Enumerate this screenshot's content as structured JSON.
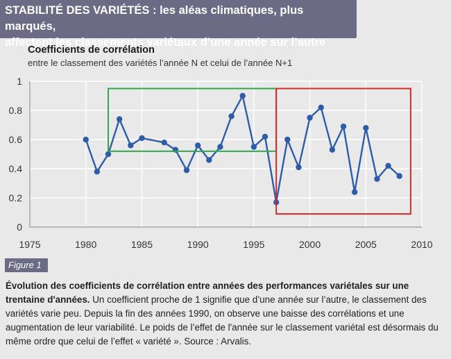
{
  "header": {
    "line1": "STABILITÉ DES VARIÉTÉS : les aléas climatiques, plus marqués,",
    "line2": "affectent les classements variétaux d’une année sur l’autre"
  },
  "figure_label": "Figure 1",
  "caption": {
    "bold": "Évolution des coefficients de corrélation entre années des performances variétales sur une trentaine d'années.",
    "text": " Un coefficient proche de 1 signifie que d’une année sur l’autre, le classement des variétés varie peu. Depuis la fin des années 1990, on observe une baisse des corrélations et une augmentation de leur variabilité. Le poids de l’effet de l'année sur le classement variétal est désormais du même ordre que celui de l’effet « variété ». Source : Arvalis."
  },
  "chart_data": {
    "type": "line",
    "title": "Coefficients de corrélation",
    "subtitle": "entre le classement des variétés l’année N et celui de l’année N+1",
    "xlabel": "",
    "ylabel": "",
    "xlim": [
      1975,
      2010
    ],
    "ylim": [
      0,
      1
    ],
    "xticks": [
      1975,
      1980,
      1985,
      1990,
      1995,
      2000,
      2005,
      2010
    ],
    "yticks": [
      0,
      0.2,
      0.4,
      0.6,
      0.8,
      1
    ],
    "grid": true,
    "series": [
      {
        "color": "#2e5ca8",
        "x": [
          1980,
          1981,
          1982,
          1983,
          1984,
          1985,
          1987,
          1988,
          1989,
          1990,
          1991,
          1992,
          1993,
          1994,
          1995,
          1996,
          1997,
          1998,
          1999,
          2000,
          2001,
          2002,
          2003,
          2004,
          2005,
          2006,
          2007,
          2008
        ],
        "y": [
          0.6,
          0.38,
          0.5,
          0.74,
          0.56,
          0.61,
          0.58,
          0.53,
          0.39,
          0.56,
          0.46,
          0.55,
          0.76,
          0.9,
          0.55,
          0.62,
          0.17,
          0.6,
          0.41,
          0.75,
          0.82,
          0.53,
          0.69,
          0.24,
          0.68,
          0.33,
          0.42,
          0.35
        ]
      }
    ],
    "highlight_boxes": [
      {
        "color": "#2fa64a",
        "x": [
          1982,
          1997
        ],
        "y": [
          0.52,
          0.95
        ]
      },
      {
        "color": "#d42a2a",
        "x": [
          1997,
          2009
        ],
        "y": [
          0.09,
          0.95
        ]
      }
    ]
  }
}
